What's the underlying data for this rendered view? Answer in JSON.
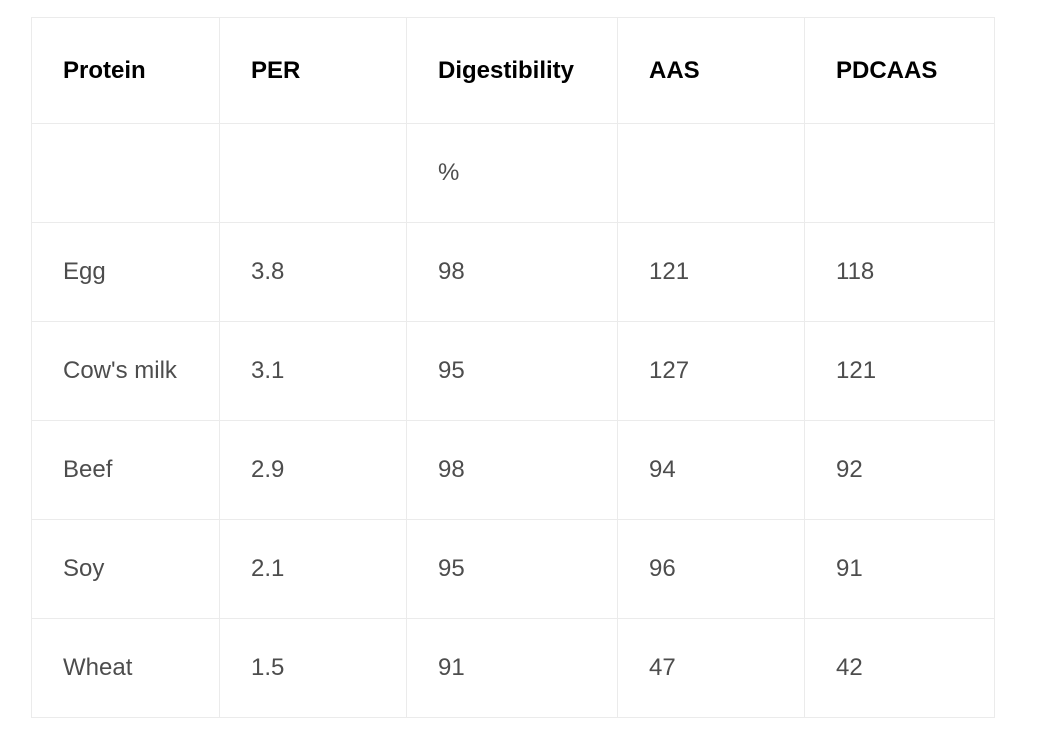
{
  "table": {
    "headers": [
      "Protein",
      "PER",
      "Digestibility",
      "AAS",
      "PDCAAS"
    ],
    "units": [
      "",
      "",
      "%",
      "",
      ""
    ],
    "rows": [
      [
        "Egg",
        "3.8",
        "98",
        "121",
        "118"
      ],
      [
        "Cow's milk",
        "3.1",
        "95",
        "127",
        "121"
      ],
      [
        "Beef",
        "2.9",
        "98",
        "94",
        "92"
      ],
      [
        "Soy",
        "2.1",
        "95",
        "96",
        "91"
      ],
      [
        "Wheat",
        "1.5",
        "91",
        "47",
        "42"
      ]
    ]
  }
}
